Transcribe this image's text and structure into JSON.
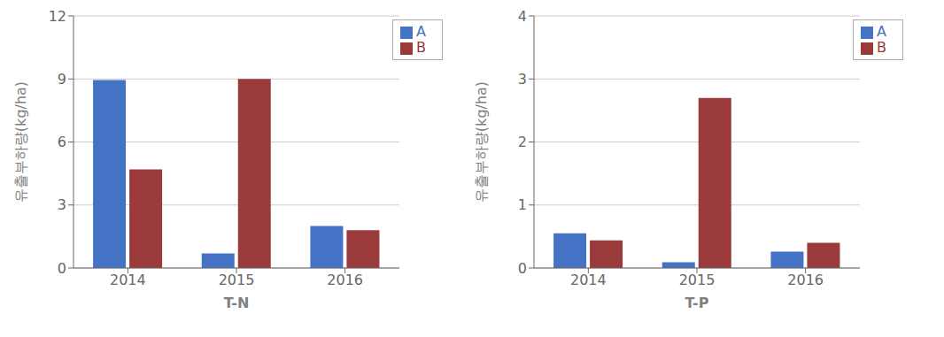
{
  "chart_data": [
    {
      "type": "bar",
      "categories": [
        "2014",
        "2015",
        "2016"
      ],
      "series": [
        {
          "name": "A",
          "color": "#4472C4",
          "values": [
            8.95,
            0.7,
            2.0
          ]
        },
        {
          "name": "B",
          "color": "#9B3A3A",
          "values": [
            4.7,
            9.0,
            1.8
          ]
        }
      ],
      "xlabel": "T-N",
      "ylabel": "유출부하량(kg/ha)",
      "ylim": [
        0,
        12
      ],
      "yticks": [
        0,
        3,
        6,
        9,
        12
      ],
      "grid": true,
      "legend": "upper right"
    },
    {
      "type": "bar",
      "categories": [
        "2014",
        "2015",
        "2016"
      ],
      "series": [
        {
          "name": "A",
          "color": "#4472C4",
          "values": [
            0.55,
            0.09,
            0.26
          ]
        },
        {
          "name": "B",
          "color": "#9B3A3A",
          "values": [
            0.44,
            2.7,
            0.4
          ]
        }
      ],
      "xlabel": "T-P",
      "ylabel": "유출부하량(kg/ha)",
      "ylim": [
        0,
        4
      ],
      "yticks": [
        0,
        1,
        2,
        3,
        4
      ],
      "grid": true,
      "legend": "upper right"
    }
  ]
}
